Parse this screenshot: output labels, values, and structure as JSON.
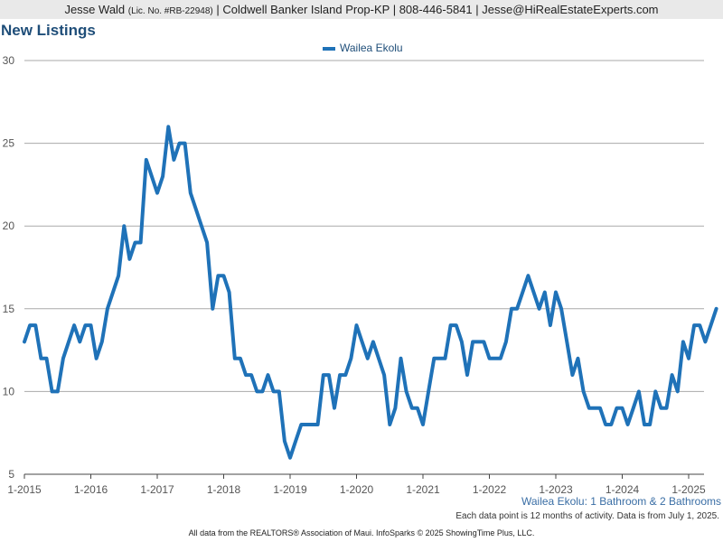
{
  "header": {
    "agent_name": "Jesse Wald",
    "license": "(Lic. No. #RB-22948)",
    "details": "| Coldwell Banker Island Prop-KP | 808-446-5841 | Jesse@HiRealEstateExperts.com"
  },
  "chart_data": {
    "type": "line",
    "title": "New Listings",
    "legend_position": "top-center",
    "grid": true,
    "ylim": [
      5,
      30
    ],
    "yticks": [
      5,
      10,
      15,
      20,
      25,
      30
    ],
    "xticks": [
      "1-2015",
      "1-2016",
      "1-2017",
      "1-2018",
      "1-2019",
      "1-2020",
      "1-2021",
      "1-2022",
      "1-2023",
      "1-2024",
      "1-2025"
    ],
    "x_start": "1-2015",
    "x_end": "6-2025",
    "series": [
      {
        "name": "Wailea Ekolu",
        "color": "#1f72b8",
        "values": [
          13,
          14,
          14,
          12,
          12,
          10,
          10,
          12,
          13,
          14,
          13,
          14,
          14,
          12,
          13,
          15,
          16,
          17,
          20,
          18,
          19,
          19,
          24,
          23,
          22,
          23,
          26,
          24,
          25,
          25,
          22,
          21,
          20,
          19,
          15,
          17,
          17,
          16,
          12,
          12,
          11,
          11,
          10,
          10,
          11,
          10,
          10,
          7,
          6,
          7,
          8,
          8,
          8,
          8,
          11,
          11,
          9,
          11,
          11,
          12,
          14,
          13,
          12,
          13,
          12,
          11,
          8,
          9,
          12,
          10,
          9,
          9,
          8,
          10,
          12,
          12,
          12,
          14,
          14,
          13,
          11,
          13,
          13,
          13,
          12,
          12,
          12,
          13,
          15,
          15,
          16,
          17,
          16,
          15,
          16,
          14,
          16,
          15,
          13,
          11,
          12,
          10,
          9,
          9,
          9,
          8,
          8,
          9,
          9,
          8,
          9,
          10,
          8,
          8,
          10,
          9,
          9,
          11,
          10,
          13,
          12,
          14,
          14,
          13,
          14,
          15
        ]
      }
    ]
  },
  "subtitle": "Wailea Ekolu: 1 Bathroom & 2 Bathrooms",
  "note": "Each data point is 12 months of activity. Data is from July 1, 2025.",
  "footer": "All data from the REALTORS® Association of Maui. InfoSparks © 2025 ShowingTime Plus, LLC."
}
